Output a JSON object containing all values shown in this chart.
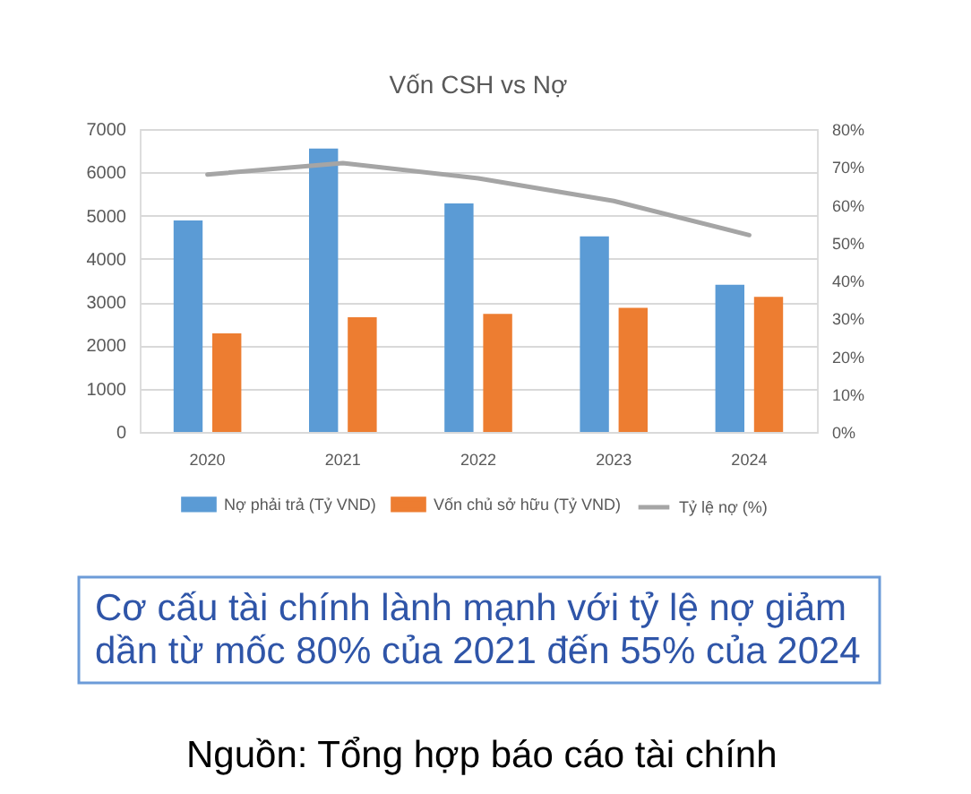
{
  "chart_data": {
    "type": "bar",
    "title": "Vốn CSH vs Nợ",
    "categories": [
      "2020",
      "2021",
      "2022",
      "2023",
      "2024"
    ],
    "series": [
      {
        "name": "Nợ phải trả (Tỷ VND)",
        "color": "#5b9bd5",
        "values": [
          4890,
          6550,
          5280,
          4520,
          3400
        ]
      },
      {
        "name": "Vốn chủ sở hữu (Tỷ VND)",
        "color": "#ed7d31",
        "values": [
          2280,
          2650,
          2730,
          2870,
          3120
        ]
      },
      {
        "name": "Tỷ lệ nợ (%)",
        "type": "line",
        "axis": "y2",
        "color": "#a5a5a5",
        "values": [
          68,
          71,
          67,
          61,
          52
        ]
      }
    ],
    "ylim": [
      0,
      7000
    ],
    "yticks": [
      0,
      1000,
      2000,
      3000,
      4000,
      5000,
      6000,
      7000
    ],
    "y2lim": [
      0,
      80
    ],
    "y2ticks": [
      {
        "value": 0,
        "label": "0%"
      },
      {
        "value": 10,
        "label": "10%"
      },
      {
        "value": 20,
        "label": "20%"
      },
      {
        "value": 30,
        "label": "30%"
      },
      {
        "value": 40,
        "label": "40%"
      },
      {
        "value": 50,
        "label": "50%"
      },
      {
        "value": 60,
        "label": "60%"
      },
      {
        "value": 70,
        "label": "70%"
      },
      {
        "value": 80,
        "label": "80%"
      }
    ],
    "grid": "y",
    "legend": "bottom",
    "marker": "none",
    "line_style": "solid",
    "annotations": [
      "Cơ cấu tài chính lành mạnh với tỷ lệ nợ giảm dần từ mốc 80% của 2021 đến 55% của 2024",
      "Nguồn: Tổng hợp báo cáo tài chính"
    ]
  }
}
